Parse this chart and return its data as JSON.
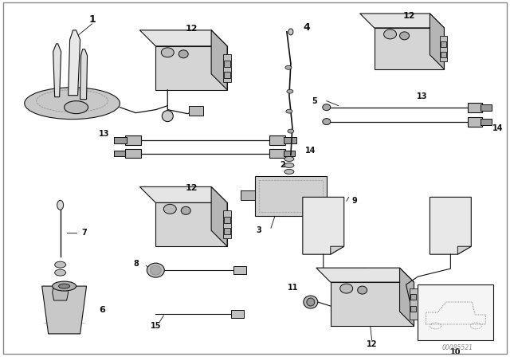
{
  "bg_color": "#ffffff",
  "part_color": "#111111",
  "fill_light": "#e8e8e8",
  "fill_mid": "#d0d0d0",
  "fill_dark": "#b8b8b8",
  "fill_dot": "#c8c8c8",
  "watermark": "00085521",
  "border_color": "#aaaaaa"
}
